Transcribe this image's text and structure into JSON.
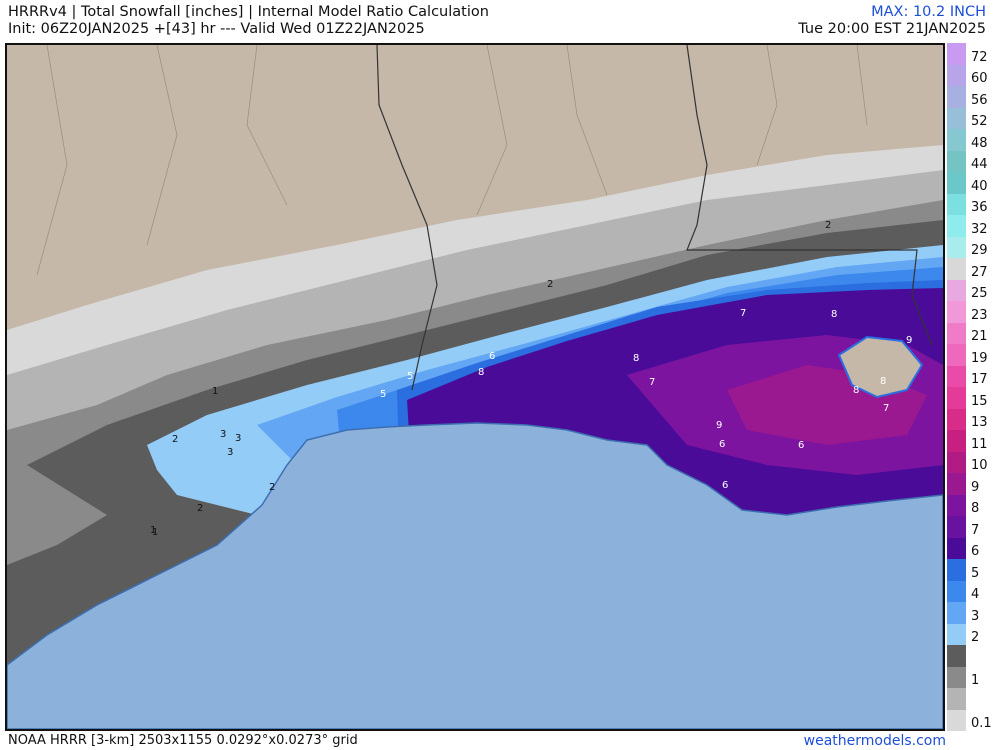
{
  "header": {
    "title": "HRRRv4 | Total Snowfall [inches] | Internal Model Ratio Calculation",
    "init": "Init: 06Z20JAN2025 +[43] hr --- Valid Wed 01Z22JAN2025",
    "max": "MAX: 10.2 INCH",
    "valid_local": "Tue 20:00 EST 21JAN2025"
  },
  "footer": {
    "grid": "NOAA HRRR [3-km] 2503x1155 0.0292°x0.0273° grid",
    "brand": "weathermodels.com"
  },
  "legend": [
    {
      "label": "72",
      "color": "#c89bf0"
    },
    {
      "label": "60",
      "color": "#b8a4e8"
    },
    {
      "label": "56",
      "color": "#a7b0e0"
    },
    {
      "label": "52",
      "color": "#97bfd8"
    },
    {
      "label": "48",
      "color": "#86c8d0"
    },
    {
      "label": "44",
      "color": "#74c4c4"
    },
    {
      "label": "40",
      "color": "#6cc8c8"
    },
    {
      "label": "36",
      "color": "#7de0e0"
    },
    {
      "label": "32",
      "color": "#90ecec"
    },
    {
      "label": "29",
      "color": "#a9ecec"
    },
    {
      "label": "27",
      "color": "#d8d8d8"
    },
    {
      "label": "25",
      "color": "#e8a8e0"
    },
    {
      "label": "23",
      "color": "#f098d8"
    },
    {
      "label": "21",
      "color": "#f07cc8"
    },
    {
      "label": "19",
      "color": "#ee68bc"
    },
    {
      "label": "17",
      "color": "#ea4aa8"
    },
    {
      "label": "15",
      "color": "#e43a98"
    },
    {
      "label": "13",
      "color": "#d82c88"
    },
    {
      "label": "11",
      "color": "#c82080"
    },
    {
      "label": "10",
      "color": "#b01c84"
    },
    {
      "label": "9",
      "color": "#9a1890"
    },
    {
      "label": "8",
      "color": "#7c14a0"
    },
    {
      "label": "7",
      "color": "#6a12a0"
    },
    {
      "label": "6",
      "color": "#4a0c98"
    },
    {
      "label": "5",
      "color": "#2a6ee0"
    },
    {
      "label": "4",
      "color": "#3d88ec"
    },
    {
      "label": "3",
      "color": "#62a6f4"
    },
    {
      "label": "2",
      "color": "#94ccf8"
    },
    {
      "label": "",
      "color": "#5c5c5c"
    },
    {
      "label": "1",
      "color": "#8a8a8a"
    },
    {
      "label": "",
      "color": "#b4b4b4"
    },
    {
      "label": "0.1",
      "color": "#d9d9d9"
    }
  ],
  "contour_labels": [
    "1",
    "1",
    "1",
    "2",
    "2",
    "2",
    "2",
    "2",
    "3",
    "3",
    "3",
    "5",
    "5",
    "6",
    "6",
    "6",
    "6",
    "7",
    "7",
    "7",
    "8",
    "8",
    "8",
    "8",
    "8",
    "9",
    "9"
  ]
}
